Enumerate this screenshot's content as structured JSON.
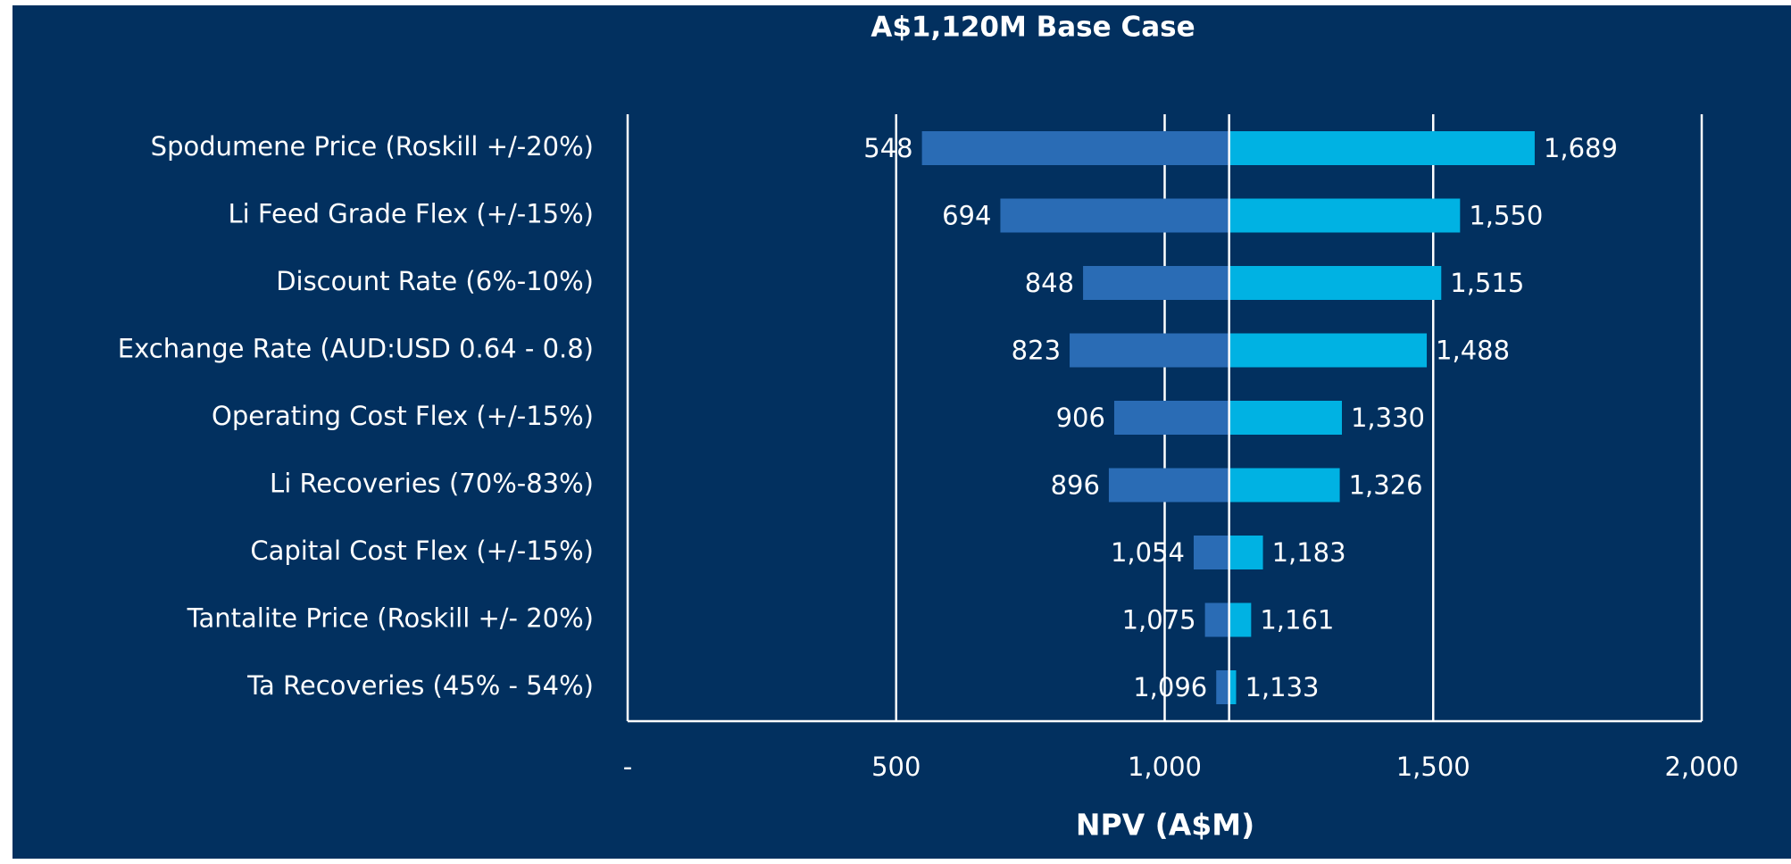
{
  "chart_data": {
    "type": "tornado",
    "title": "A$1,120M Base Case",
    "x_label": "NPV (A$M)",
    "base": 1120,
    "categories": [
      "Spodumene Price (Roskill +/-20%)",
      "Li Feed Grade Flex (+/-15%)",
      "Discount Rate (6%-10%)",
      "Exchange Rate (AUD:USD 0.64 - 0.8)",
      "Operating Cost Flex (+/-15%)",
      "Li Recoveries (70%-83%)",
      "Capital Cost Flex (+/-15%)",
      "Tantalite Price (Roskill +/- 20%)",
      "Ta Recoveries (45% - 54%)"
    ],
    "series": [
      {
        "color": "#2a6cb5",
        "values": [
          548,
          694,
          848,
          823,
          906,
          896,
          1054,
          1075,
          1096
        ],
        "value_labels": [
          "548",
          "694",
          "848",
          "823",
          "906",
          "896",
          "1,054",
          "1,075",
          "1,096"
        ]
      },
      {
        "color": "#00b2e3",
        "values": [
          1689,
          1550,
          1515,
          1488,
          1330,
          1326,
          1183,
          1161,
          1133
        ],
        "value_labels": [
          "1,689",
          "1,550",
          "1,515",
          "1,488",
          "1,330",
          "1,326",
          "1,183",
          "1,161",
          "1,133"
        ]
      }
    ],
    "xlim": [
      0,
      2000
    ],
    "xticks": [
      {
        "value": 0,
        "label": "-"
      },
      500,
      {
        "value": 1000,
        "label": "1,000"
      },
      {
        "value": 1500,
        "label": "1,500"
      },
      {
        "value": 2000,
        "label": "2,000"
      }
    ],
    "grid": true
  }
}
